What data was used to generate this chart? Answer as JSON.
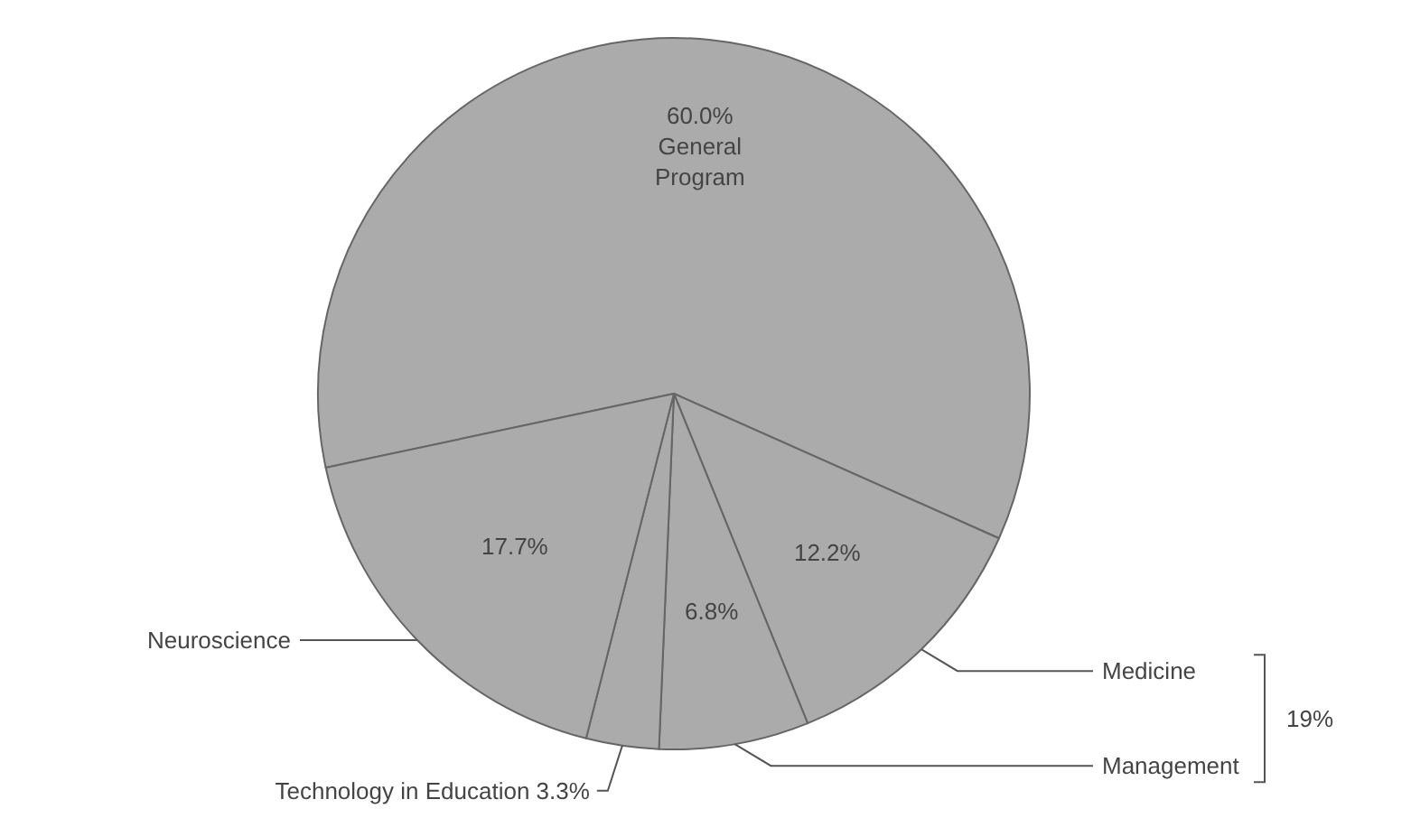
{
  "chart_data": {
    "type": "pie",
    "categories": [
      "General Program",
      "Medicine",
      "Management",
      "Technology in Education",
      "Neuroscience"
    ],
    "values": [
      60.0,
      12.2,
      6.8,
      3.3,
      17.7
    ],
    "value_labels": [
      "60.0%",
      "12.2%",
      "6.8%",
      "3.3%",
      "17.7%"
    ],
    "colors": [
      "#ababab",
      "#ababab",
      "#ababab",
      "#ababab",
      "#ababab"
    ],
    "annotations": [
      "19%"
    ],
    "legend": false
  }
}
